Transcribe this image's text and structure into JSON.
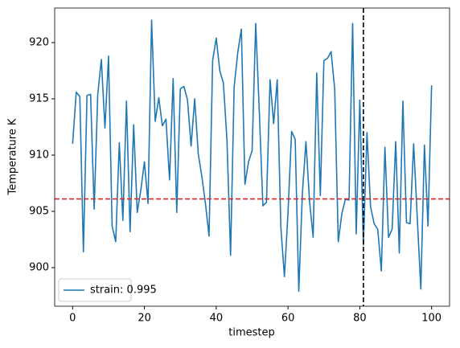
{
  "chart_data": {
    "type": "line",
    "xlabel": "timestep",
    "ylabel": "Temperature K",
    "x": [
      0,
      1,
      2,
      3,
      4,
      5,
      6,
      7,
      8,
      9,
      10,
      11,
      12,
      13,
      14,
      15,
      16,
      17,
      18,
      19,
      20,
      21,
      22,
      23,
      24,
      25,
      26,
      27,
      28,
      29,
      30,
      31,
      32,
      33,
      34,
      35,
      36,
      37,
      38,
      39,
      40,
      41,
      42,
      43,
      44,
      45,
      46,
      47,
      48,
      49,
      50,
      51,
      52,
      53,
      54,
      55,
      56,
      57,
      58,
      59,
      60,
      61,
      62,
      63,
      64,
      65,
      66,
      67,
      68,
      69,
      70,
      71,
      72,
      73,
      74,
      75,
      76,
      77,
      78,
      79,
      80,
      81,
      82,
      83,
      84,
      85,
      86,
      87,
      88,
      89,
      90,
      91,
      92,
      93,
      94,
      95,
      96,
      97,
      98,
      99,
      100
    ],
    "series": [
      {
        "name": "strain: 0.995",
        "color": "#1f77b4",
        "values": [
          911,
          915.6,
          915.2,
          901.4,
          915.3,
          915.4,
          905.2,
          915.4,
          918.5,
          912.4,
          918.8,
          903.7,
          902.3,
          911.1,
          904.2,
          914.8,
          903.2,
          912.7,
          904.9,
          906.9,
          909.4,
          905.7,
          922,
          913,
          915.1,
          912.6,
          913.2,
          907.8,
          916.8,
          904.9,
          915.9,
          916.1,
          914.9,
          910.8,
          915,
          910.1,
          908.1,
          905.7,
          902.8,
          918.4,
          920.4,
          917.5,
          916.4,
          911.3,
          901.1,
          916.1,
          919.1,
          921.2,
          907.4,
          909.4,
          910.4,
          921.7,
          913.9,
          905.5,
          905.8,
          916.7,
          912.8,
          916.7,
          903.6,
          899.2,
          904.9,
          912.1,
          911.4,
          897.9,
          906.6,
          911.2,
          905.9,
          902.7,
          917.3,
          906.4,
          918.4,
          918.6,
          919.2,
          915.9,
          902.3,
          904.8,
          906.1,
          906,
          921.7,
          903,
          914.9,
          902,
          912,
          905.4,
          903.9,
          903.4,
          899.7,
          910.7,
          902.7,
          903.4,
          911.2,
          901.3,
          914.8,
          904,
          903.9,
          911,
          904.5,
          898.1,
          910.9,
          903.7,
          916.2
        ]
      }
    ],
    "hline": {
      "value": 906.1,
      "color": "#d62728"
    },
    "vline": {
      "value": 81,
      "color": "#000000"
    },
    "xlim": [
      -5,
      105
    ],
    "ylim": [
      896.57,
      923.07
    ],
    "xticks": [
      0,
      20,
      40,
      60,
      80,
      100
    ],
    "yticks": [
      900,
      905,
      910,
      915,
      920
    ],
    "legend": "lower left"
  }
}
